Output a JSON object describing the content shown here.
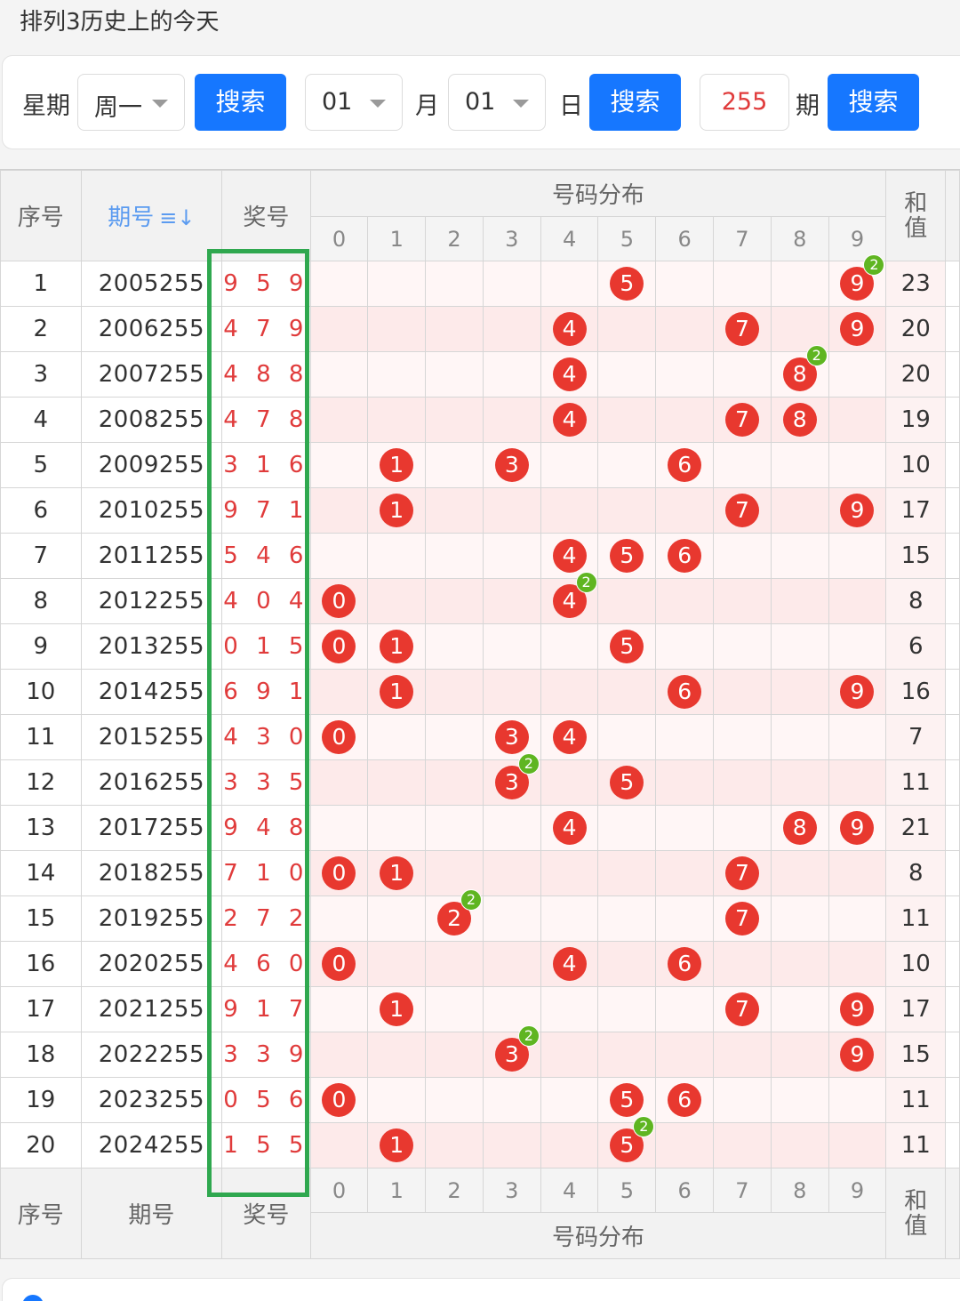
{
  "page": {
    "title": "排列3历史上的今天"
  },
  "search": {
    "week_label": "星期",
    "week_value": "周一",
    "search1": "搜索",
    "month_value": "01",
    "month_label": "月",
    "day_value": "01",
    "day_label": "日",
    "search2": "搜索",
    "period_value": "255",
    "period_label": "期",
    "search3": "搜索"
  },
  "table": {
    "header": {
      "index": "序号",
      "issue": "期号",
      "sort_icon": "≡↓",
      "draw": "奖号",
      "distribution": "号码分布",
      "sum_line1": "和",
      "sum_line2": "值"
    },
    "digits": [
      "0",
      "1",
      "2",
      "3",
      "4",
      "5",
      "6",
      "7",
      "8",
      "9"
    ],
    "rows": [
      {
        "index": "1",
        "issue": "2005255",
        "draw": "9 5 9",
        "sum": "23",
        "balls": [
          {
            "d": 5
          },
          {
            "d": 9,
            "badge": "2"
          }
        ]
      },
      {
        "index": "2",
        "issue": "2006255",
        "draw": "4 7 9",
        "sum": "20",
        "balls": [
          {
            "d": 4
          },
          {
            "d": 7
          },
          {
            "d": 9
          }
        ]
      },
      {
        "index": "3",
        "issue": "2007255",
        "draw": "4 8 8",
        "sum": "20",
        "balls": [
          {
            "d": 4
          },
          {
            "d": 8,
            "badge": "2"
          }
        ]
      },
      {
        "index": "4",
        "issue": "2008255",
        "draw": "4 7 8",
        "sum": "19",
        "balls": [
          {
            "d": 4
          },
          {
            "d": 7
          },
          {
            "d": 8
          }
        ]
      },
      {
        "index": "5",
        "issue": "2009255",
        "draw": "3 1 6",
        "sum": "10",
        "balls": [
          {
            "d": 1
          },
          {
            "d": 3
          },
          {
            "d": 6
          }
        ]
      },
      {
        "index": "6",
        "issue": "2010255",
        "draw": "9 7 1",
        "sum": "17",
        "balls": [
          {
            "d": 1
          },
          {
            "d": 7
          },
          {
            "d": 9
          }
        ]
      },
      {
        "index": "7",
        "issue": "2011255",
        "draw": "5 4 6",
        "sum": "15",
        "balls": [
          {
            "d": 4
          },
          {
            "d": 5
          },
          {
            "d": 6
          }
        ]
      },
      {
        "index": "8",
        "issue": "2012255",
        "draw": "4 0 4",
        "sum": "8",
        "balls": [
          {
            "d": 0
          },
          {
            "d": 4,
            "badge": "2"
          }
        ]
      },
      {
        "index": "9",
        "issue": "2013255",
        "draw": "0 1 5",
        "sum": "6",
        "balls": [
          {
            "d": 0
          },
          {
            "d": 1
          },
          {
            "d": 5
          }
        ]
      },
      {
        "index": "10",
        "issue": "2014255",
        "draw": "6 9 1",
        "sum": "16",
        "balls": [
          {
            "d": 1
          },
          {
            "d": 6
          },
          {
            "d": 9
          }
        ]
      },
      {
        "index": "11",
        "issue": "2015255",
        "draw": "4 3 0",
        "sum": "7",
        "balls": [
          {
            "d": 0
          },
          {
            "d": 3
          },
          {
            "d": 4
          }
        ]
      },
      {
        "index": "12",
        "issue": "2016255",
        "draw": "3 3 5",
        "sum": "11",
        "balls": [
          {
            "d": 3,
            "badge": "2"
          },
          {
            "d": 5
          }
        ]
      },
      {
        "index": "13",
        "issue": "2017255",
        "draw": "9 4 8",
        "sum": "21",
        "balls": [
          {
            "d": 4
          },
          {
            "d": 8
          },
          {
            "d": 9
          }
        ]
      },
      {
        "index": "14",
        "issue": "2018255",
        "draw": "7 1 0",
        "sum": "8",
        "balls": [
          {
            "d": 0
          },
          {
            "d": 1
          },
          {
            "d": 7
          }
        ]
      },
      {
        "index": "15",
        "issue": "2019255",
        "draw": "2 7 2",
        "sum": "11",
        "balls": [
          {
            "d": 2,
            "badge": "2"
          },
          {
            "d": 7
          }
        ]
      },
      {
        "index": "16",
        "issue": "2020255",
        "draw": "4 6 0",
        "sum": "10",
        "balls": [
          {
            "d": 0
          },
          {
            "d": 4
          },
          {
            "d": 6
          }
        ]
      },
      {
        "index": "17",
        "issue": "2021255",
        "draw": "9 1 7",
        "sum": "17",
        "balls": [
          {
            "d": 1
          },
          {
            "d": 7
          },
          {
            "d": 9
          }
        ]
      },
      {
        "index": "18",
        "issue": "2022255",
        "draw": "3 3 9",
        "sum": "15",
        "balls": [
          {
            "d": 3,
            "badge": "2"
          },
          {
            "d": 9
          }
        ]
      },
      {
        "index": "19",
        "issue": "2023255",
        "draw": "0 5 6",
        "sum": "11",
        "balls": [
          {
            "d": 0
          },
          {
            "d": 5
          },
          {
            "d": 6
          }
        ]
      },
      {
        "index": "20",
        "issue": "2024255",
        "draw": "1 5 5",
        "sum": "11",
        "balls": [
          {
            "d": 1
          },
          {
            "d": 5,
            "badge": "2"
          }
        ]
      }
    ],
    "footer": {
      "index": "序号",
      "issue": "期号",
      "draw": "奖号",
      "distribution": "号码分布",
      "sum_line1": "和",
      "sum_line2": "值"
    }
  },
  "colors": {
    "accent": "#1677ff",
    "ball": "#e8382f",
    "badge": "#5fb521",
    "highlight_box": "#2fa84f",
    "draw_text": "#e03b3b"
  }
}
